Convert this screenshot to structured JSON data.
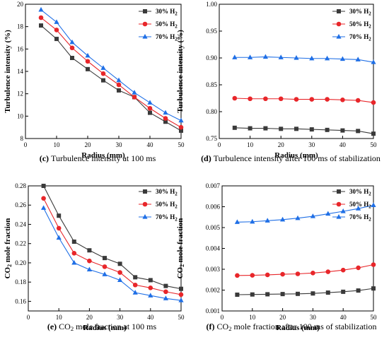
{
  "colors": {
    "s30": "#3a3a3a",
    "s50": "#e8262a",
    "s70": "#1f6fe6"
  },
  "chart_data": [
    {
      "type": "line",
      "caption_letter": "(c)",
      "caption_text": "Turbulence intensity at 100 ms",
      "xlabel": "Radius (mm)",
      "ylabel": "Turbulence intensity (%)",
      "xlim": [
        0,
        50
      ],
      "ylim": [
        8,
        20
      ],
      "xticks": [
        0,
        10,
        20,
        30,
        40,
        50
      ],
      "yticks": [
        8,
        10,
        12,
        14,
        16,
        18,
        20
      ],
      "ytick_decimals": 0,
      "legend": "top-right",
      "x": [
        5,
        10,
        15,
        20,
        25,
        30,
        35,
        40,
        45,
        50
      ],
      "series": [
        {
          "name": "30% H2",
          "marker": "square",
          "values": [
            18.1,
            16.9,
            15.2,
            14.2,
            13.2,
            12.3,
            11.7,
            10.3,
            9.5,
            8.7
          ]
        },
        {
          "name": "50% H2",
          "marker": "circle",
          "values": [
            18.8,
            17.7,
            16.1,
            14.9,
            13.8,
            12.8,
            11.7,
            10.7,
            9.8,
            9.0
          ]
        },
        {
          "name": "70% H2",
          "marker": "triangle",
          "values": [
            19.5,
            18.4,
            16.6,
            15.4,
            14.3,
            13.2,
            12.1,
            11.2,
            10.3,
            9.6
          ]
        }
      ]
    },
    {
      "type": "line",
      "caption_letter": "(d)",
      "caption_text": "Turbulence intensity after 100 ms of stabilization",
      "xlabel": "Radius (mm)",
      "ylabel": "Turbulence intensity (%)",
      "xlim": [
        0,
        50
      ],
      "ylim": [
        0.75,
        1.0
      ],
      "xticks": [
        0,
        10,
        20,
        30,
        40,
        50
      ],
      "yticks": [
        0.75,
        0.8,
        0.85,
        0.9,
        0.95,
        1.0
      ],
      "ytick_decimals": 2,
      "legend": "top-right",
      "x": [
        5,
        10,
        15,
        20,
        25,
        30,
        35,
        40,
        45,
        50
      ],
      "series": [
        {
          "name": "30% H2",
          "marker": "square",
          "values": [
            0.77,
            0.769,
            0.769,
            0.768,
            0.768,
            0.767,
            0.766,
            0.765,
            0.764,
            0.759
          ]
        },
        {
          "name": "50% H2",
          "marker": "circle",
          "values": [
            0.825,
            0.824,
            0.824,
            0.824,
            0.823,
            0.823,
            0.823,
            0.822,
            0.821,
            0.817
          ]
        },
        {
          "name": "70% H2",
          "marker": "triangle",
          "values": [
            0.901,
            0.901,
            0.902,
            0.901,
            0.9,
            0.899,
            0.899,
            0.898,
            0.897,
            0.892
          ]
        }
      ]
    },
    {
      "type": "line",
      "caption_letter": "(e)",
      "caption_text": "CO₂ mole fraction at 100 ms",
      "xlabel": "Radius (mm)",
      "ylabel": "CO₂ mole fraction",
      "xlim": [
        0,
        50
      ],
      "ylim": [
        0.15,
        0.28
      ],
      "xticks": [
        0,
        10,
        20,
        30,
        40,
        50
      ],
      "yticks": [
        0.16,
        0.18,
        0.2,
        0.22,
        0.24,
        0.26,
        0.28
      ],
      "ytick_decimals": 2,
      "legend": "top-right",
      "x": [
        5,
        10,
        15,
        20,
        25,
        30,
        35,
        40,
        45,
        50
      ],
      "series": [
        {
          "name": "30% H2",
          "marker": "square",
          "values": [
            0.28,
            0.249,
            0.222,
            0.213,
            0.205,
            0.199,
            0.185,
            0.182,
            0.176,
            0.173
          ]
        },
        {
          "name": "50% H2",
          "marker": "circle",
          "values": [
            0.267,
            0.236,
            0.21,
            0.202,
            0.196,
            0.19,
            0.177,
            0.174,
            0.17,
            0.167
          ]
        },
        {
          "name": "70% H2",
          "marker": "triangle",
          "values": [
            0.257,
            0.226,
            0.2,
            0.193,
            0.188,
            0.182,
            0.169,
            0.166,
            0.163,
            0.161
          ]
        }
      ]
    },
    {
      "type": "line",
      "caption_letter": "(f)",
      "caption_text": "CO₂ mole fraction after 100 ms of stabilization",
      "xlabel": "Radius (mm)",
      "ylabel": "CO₂ mole fraction",
      "xlim": [
        0,
        50
      ],
      "ylim": [
        0.001,
        0.007
      ],
      "xticks": [
        0,
        10,
        20,
        30,
        40,
        50
      ],
      "yticks": [
        0.001,
        0.002,
        0.003,
        0.004,
        0.005,
        0.006,
        0.007
      ],
      "ytick_decimals": 3,
      "legend": "top-right",
      "x": [
        5,
        10,
        15,
        20,
        25,
        30,
        35,
        40,
        45,
        50
      ],
      "series": [
        {
          "name": "30% H2",
          "marker": "square",
          "values": [
            0.00178,
            0.00179,
            0.0018,
            0.00181,
            0.00182,
            0.00184,
            0.00188,
            0.00192,
            0.00198,
            0.00208
          ]
        },
        {
          "name": "50% H2",
          "marker": "circle",
          "values": [
            0.0027,
            0.00271,
            0.00273,
            0.00276,
            0.00278,
            0.00282,
            0.00288,
            0.00296,
            0.00307,
            0.00322
          ]
        },
        {
          "name": "70% H2",
          "marker": "triangle",
          "values": [
            0.00526,
            0.00528,
            0.00533,
            0.00538,
            0.00545,
            0.00554,
            0.00566,
            0.00578,
            0.00591,
            0.00607
          ]
        }
      ]
    }
  ]
}
